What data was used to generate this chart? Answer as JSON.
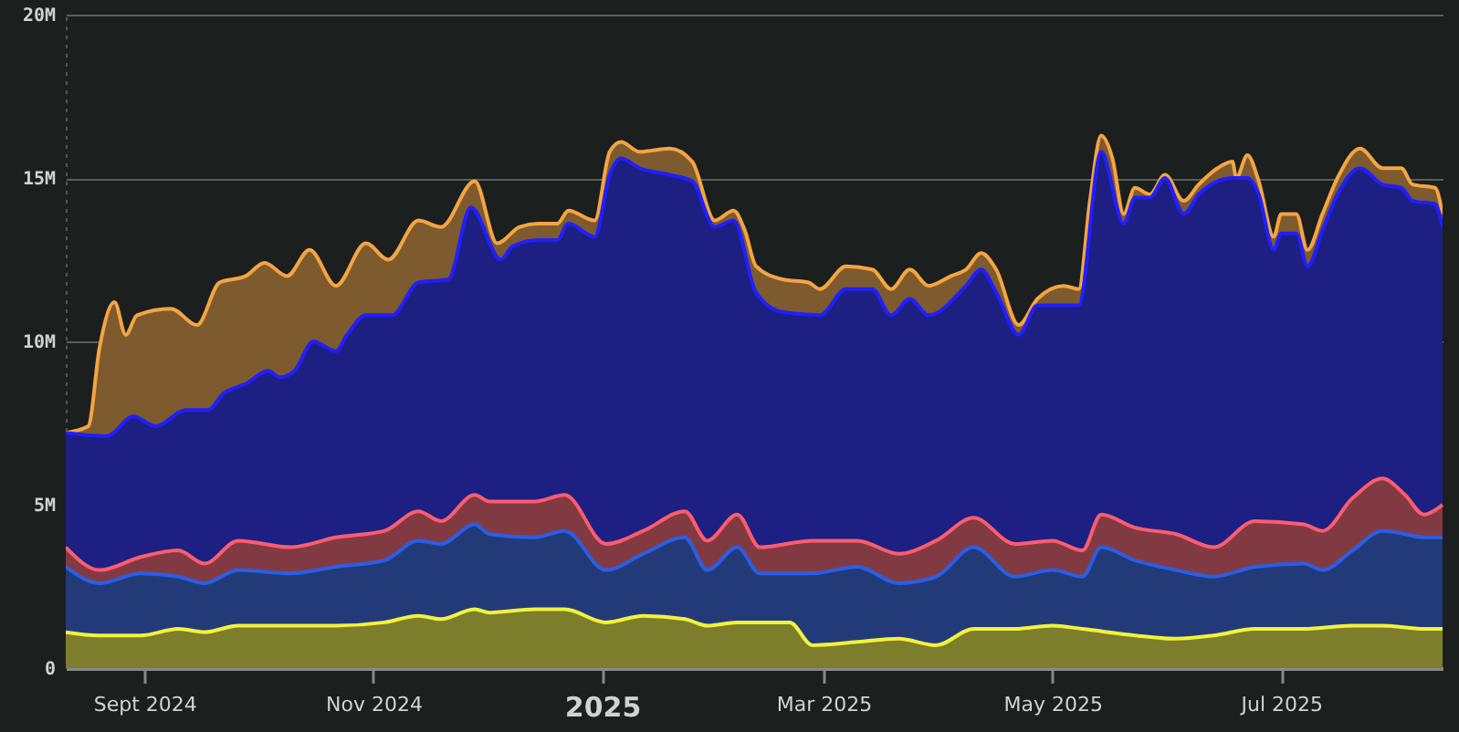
{
  "chart_data": {
    "type": "area",
    "xlim": [
      "2024-08-11",
      "2025-08-13"
    ],
    "ylim": [
      0,
      20
    ],
    "xticks": [
      {
        "value": "2024-09-01",
        "label": "Sept 2024"
      },
      {
        "value": "2024-11-01",
        "label": "Nov 2024"
      },
      {
        "value": "2025-01-01",
        "label": "2025"
      },
      {
        "value": "2025-03-01",
        "label": "Mar 2025"
      },
      {
        "value": "2025-05-01",
        "label": "May 2025"
      },
      {
        "value": "2025-07-01",
        "label": "Jul 2025"
      }
    ],
    "yticks": [
      0,
      {
        "value": 5,
        "label": "5M"
      },
      {
        "value": 10,
        "label": "10M"
      },
      {
        "value": 15,
        "label": "15M"
      },
      {
        "value": 20,
        "label": "20M"
      }
    ],
    "grid": "y",
    "series": [
      {
        "color": "#f5a442",
        "x": [
          "2024-08-11",
          "2024-08-17",
          "2024-08-20",
          "2024-08-24",
          "2024-08-27",
          "2024-08-30",
          "2024-09-08",
          "2024-09-15",
          "2024-09-21",
          "2024-09-28",
          "2024-10-03",
          "2024-10-09",
          "2024-10-15",
          "2024-10-22",
          "2024-10-30",
          "2024-11-05",
          "2024-11-13",
          "2024-11-19",
          "2024-11-28",
          "2024-12-04",
          "2024-12-10",
          "2024-12-15",
          "2024-12-20",
          "2024-12-23",
          "2024-12-30",
          "2025-01-03",
          "2025-01-06",
          "2025-01-11",
          "2025-01-19",
          "2025-01-25",
          "2025-01-31",
          "2025-02-05",
          "2025-02-08",
          "2025-02-11",
          "2025-02-18",
          "2025-02-25",
          "2025-02-28",
          "2025-03-07",
          "2025-03-14",
          "2025-03-19",
          "2025-03-24",
          "2025-03-29",
          "2025-04-04",
          "2025-04-08",
          "2025-04-12",
          "2025-04-16",
          "2025-04-22",
          "2025-04-27",
          "2025-05-04",
          "2025-05-08",
          "2025-05-11",
          "2025-05-14",
          "2025-05-17",
          "2025-05-20",
          "2025-05-23",
          "2025-05-27",
          "2025-05-31",
          "2025-06-05",
          "2025-06-09",
          "2025-06-14",
          "2025-06-18",
          "2025-06-19",
          "2025-06-22",
          "2025-06-25",
          "2025-06-29",
          "2025-07-01",
          "2025-07-05",
          "2025-07-08",
          "2025-07-12",
          "2025-07-16",
          "2025-07-22",
          "2025-07-28",
          "2025-08-02",
          "2025-08-05",
          "2025-08-11",
          "2025-08-13"
        ],
        "values": [
          7.2,
          7.4,
          9.8,
          11.2,
          10.2,
          10.8,
          11.0,
          10.5,
          11.8,
          12.0,
          12.4,
          12.0,
          12.8,
          11.7,
          13.0,
          12.5,
          13.7,
          13.5,
          14.9,
          13.0,
          13.5,
          13.6,
          13.6,
          14.0,
          13.7,
          15.8,
          16.1,
          15.8,
          15.9,
          15.5,
          13.7,
          14.0,
          13.4,
          12.3,
          11.9,
          11.8,
          11.6,
          12.3,
          12.2,
          11.6,
          12.2,
          11.7,
          12.0,
          12.2,
          12.7,
          12.2,
          10.5,
          11.3,
          11.7,
          11.6,
          14.3,
          16.3,
          15.6,
          13.9,
          14.7,
          14.5,
          15.1,
          14.3,
          14.8,
          15.3,
          15.5,
          15.0,
          15.7,
          14.9,
          13.2,
          13.9,
          13.9,
          12.8,
          13.9,
          15.0,
          15.9,
          15.3,
          15.3,
          14.8,
          14.7,
          13.9
        ]
      },
      {
        "color": "#1f1fff",
        "x": [
          "2024-08-11",
          "2024-08-22",
          "2024-08-29",
          "2024-09-04",
          "2024-09-12",
          "2024-09-18",
          "2024-09-22",
          "2024-09-28",
          "2024-10-04",
          "2024-10-07",
          "2024-10-11",
          "2024-10-16",
          "2024-10-22",
          "2024-10-25",
          "2024-10-30",
          "2024-11-06",
          "2024-11-13",
          "2024-11-21",
          "2024-11-27",
          "2024-12-05",
          "2024-12-08",
          "2024-12-15",
          "2024-12-20",
          "2024-12-23",
          "2024-12-30",
          "2025-01-03",
          "2025-01-06",
          "2025-01-11",
          "2025-01-19",
          "2025-01-25",
          "2025-01-31",
          "2025-02-05",
          "2025-02-11",
          "2025-02-18",
          "2025-02-28",
          "2025-03-07",
          "2025-03-14",
          "2025-03-19",
          "2025-03-24",
          "2025-03-29",
          "2025-04-08",
          "2025-04-12",
          "2025-04-16",
          "2025-04-22",
          "2025-04-27",
          "2025-05-04",
          "2025-05-08",
          "2025-05-14",
          "2025-05-20",
          "2025-05-23",
          "2025-05-27",
          "2025-05-31",
          "2025-06-05",
          "2025-06-09",
          "2025-06-14",
          "2025-06-18",
          "2025-06-22",
          "2025-06-25",
          "2025-06-29",
          "2025-07-01",
          "2025-07-05",
          "2025-07-08",
          "2025-07-12",
          "2025-07-16",
          "2025-07-22",
          "2025-07-28",
          "2025-08-02",
          "2025-08-05",
          "2025-08-11",
          "2025-08-13"
        ],
        "values": [
          7.2,
          7.1,
          7.7,
          7.4,
          7.9,
          7.9,
          8.4,
          8.7,
          9.1,
          8.9,
          9.1,
          10.0,
          9.7,
          10.2,
          10.8,
          10.8,
          11.8,
          11.9,
          14.1,
          12.5,
          12.9,
          13.1,
          13.1,
          13.6,
          13.2,
          15.1,
          15.6,
          15.3,
          15.1,
          14.9,
          13.5,
          13.7,
          11.5,
          10.9,
          10.8,
          11.6,
          11.6,
          10.8,
          11.3,
          10.8,
          11.7,
          12.2,
          11.5,
          10.2,
          11.1,
          11.1,
          11.1,
          15.8,
          13.6,
          14.4,
          14.4,
          15.0,
          13.9,
          14.5,
          14.9,
          15.0,
          15.0,
          14.5,
          12.8,
          13.3,
          13.3,
          12.3,
          13.4,
          14.5,
          15.3,
          14.8,
          14.7,
          14.3,
          14.2,
          13.5
        ]
      },
      {
        "color": "#ff5c6e",
        "x": [
          "2024-08-11",
          "2024-08-20",
          "2024-08-31",
          "2024-09-10",
          "2024-09-17",
          "2024-09-26",
          "2024-10-10",
          "2024-10-22",
          "2024-11-04",
          "2024-11-13",
          "2024-11-19",
          "2024-11-28",
          "2024-12-02",
          "2024-12-14",
          "2024-12-22",
          "2025-01-02",
          "2025-01-12",
          "2025-01-23",
          "2025-01-29",
          "2025-02-06",
          "2025-02-12",
          "2025-02-26",
          "2025-03-10",
          "2025-03-21",
          "2025-03-31",
          "2025-04-10",
          "2025-04-21",
          "2025-05-01",
          "2025-05-09",
          "2025-05-14",
          "2025-05-23",
          "2025-06-03",
          "2025-06-13",
          "2025-06-24",
          "2025-07-07",
          "2025-07-12",
          "2025-07-20",
          "2025-07-28",
          "2025-08-03",
          "2025-08-08",
          "2025-08-13"
        ],
        "values": [
          3.7,
          3.0,
          3.4,
          3.6,
          3.2,
          3.9,
          3.7,
          4.0,
          4.2,
          4.8,
          4.5,
          5.3,
          5.1,
          5.1,
          5.3,
          3.8,
          4.2,
          4.8,
          3.9,
          4.7,
          3.7,
          3.9,
          3.9,
          3.5,
          3.9,
          4.6,
          3.8,
          3.9,
          3.6,
          4.7,
          4.3,
          4.1,
          3.7,
          4.5,
          4.4,
          4.2,
          5.2,
          5.8,
          5.3,
          4.7,
          5.0
        ]
      },
      {
        "color": "#2a5ee6",
        "x": [
          "2024-08-11",
          "2024-08-20",
          "2024-08-31",
          "2024-09-10",
          "2024-09-17",
          "2024-09-26",
          "2024-10-10",
          "2024-10-22",
          "2024-11-04",
          "2024-11-13",
          "2024-11-19",
          "2024-11-28",
          "2024-12-02",
          "2024-12-14",
          "2024-12-22",
          "2025-01-02",
          "2025-01-12",
          "2025-01-23",
          "2025-01-29",
          "2025-02-06",
          "2025-02-12",
          "2025-02-26",
          "2025-03-10",
          "2025-03-21",
          "2025-03-31",
          "2025-04-10",
          "2025-04-21",
          "2025-05-01",
          "2025-05-09",
          "2025-05-14",
          "2025-05-23",
          "2025-06-03",
          "2025-06-13",
          "2025-06-24",
          "2025-07-07",
          "2025-07-12",
          "2025-07-20",
          "2025-07-28",
          "2025-08-03",
          "2025-08-08",
          "2025-08-13"
        ],
        "values": [
          3.1,
          2.6,
          2.9,
          2.8,
          2.6,
          3.0,
          2.9,
          3.1,
          3.3,
          3.9,
          3.8,
          4.4,
          4.1,
          4.0,
          4.2,
          3.0,
          3.5,
          4.0,
          3.0,
          3.7,
          2.9,
          2.9,
          3.1,
          2.6,
          2.8,
          3.7,
          2.8,
          3.0,
          2.8,
          3.7,
          3.3,
          3.0,
          2.8,
          3.1,
          3.2,
          3.0,
          3.6,
          4.2,
          4.1,
          4.0,
          4.0
        ]
      },
      {
        "color": "#f2f23c",
        "x": [
          "2024-08-11",
          "2024-08-20",
          "2024-08-31",
          "2024-09-10",
          "2024-09-17",
          "2024-09-26",
          "2024-10-10",
          "2024-10-22",
          "2024-11-04",
          "2024-11-13",
          "2024-11-19",
          "2024-11-28",
          "2024-12-02",
          "2024-12-14",
          "2024-12-22",
          "2025-01-02",
          "2025-01-12",
          "2025-01-23",
          "2025-01-29",
          "2025-02-06",
          "2025-02-12",
          "2025-02-20",
          "2025-02-26",
          "2025-03-10",
          "2025-03-21",
          "2025-03-31",
          "2025-04-10",
          "2025-04-21",
          "2025-05-01",
          "2025-05-09",
          "2025-05-23",
          "2025-06-03",
          "2025-06-13",
          "2025-06-24",
          "2025-07-07",
          "2025-07-20",
          "2025-07-28",
          "2025-08-08",
          "2025-08-13"
        ],
        "values": [
          1.1,
          1.0,
          1.0,
          1.2,
          1.1,
          1.3,
          1.3,
          1.3,
          1.4,
          1.6,
          1.5,
          1.8,
          1.7,
          1.8,
          1.8,
          1.4,
          1.6,
          1.5,
          1.3,
          1.4,
          1.4,
          1.4,
          0.7,
          0.8,
          0.9,
          0.7,
          1.2,
          1.2,
          1.3,
          1.2,
          1.0,
          0.9,
          1.0,
          1.2,
          1.2,
          1.3,
          1.3,
          1.2,
          1.2
        ]
      }
    ]
  }
}
